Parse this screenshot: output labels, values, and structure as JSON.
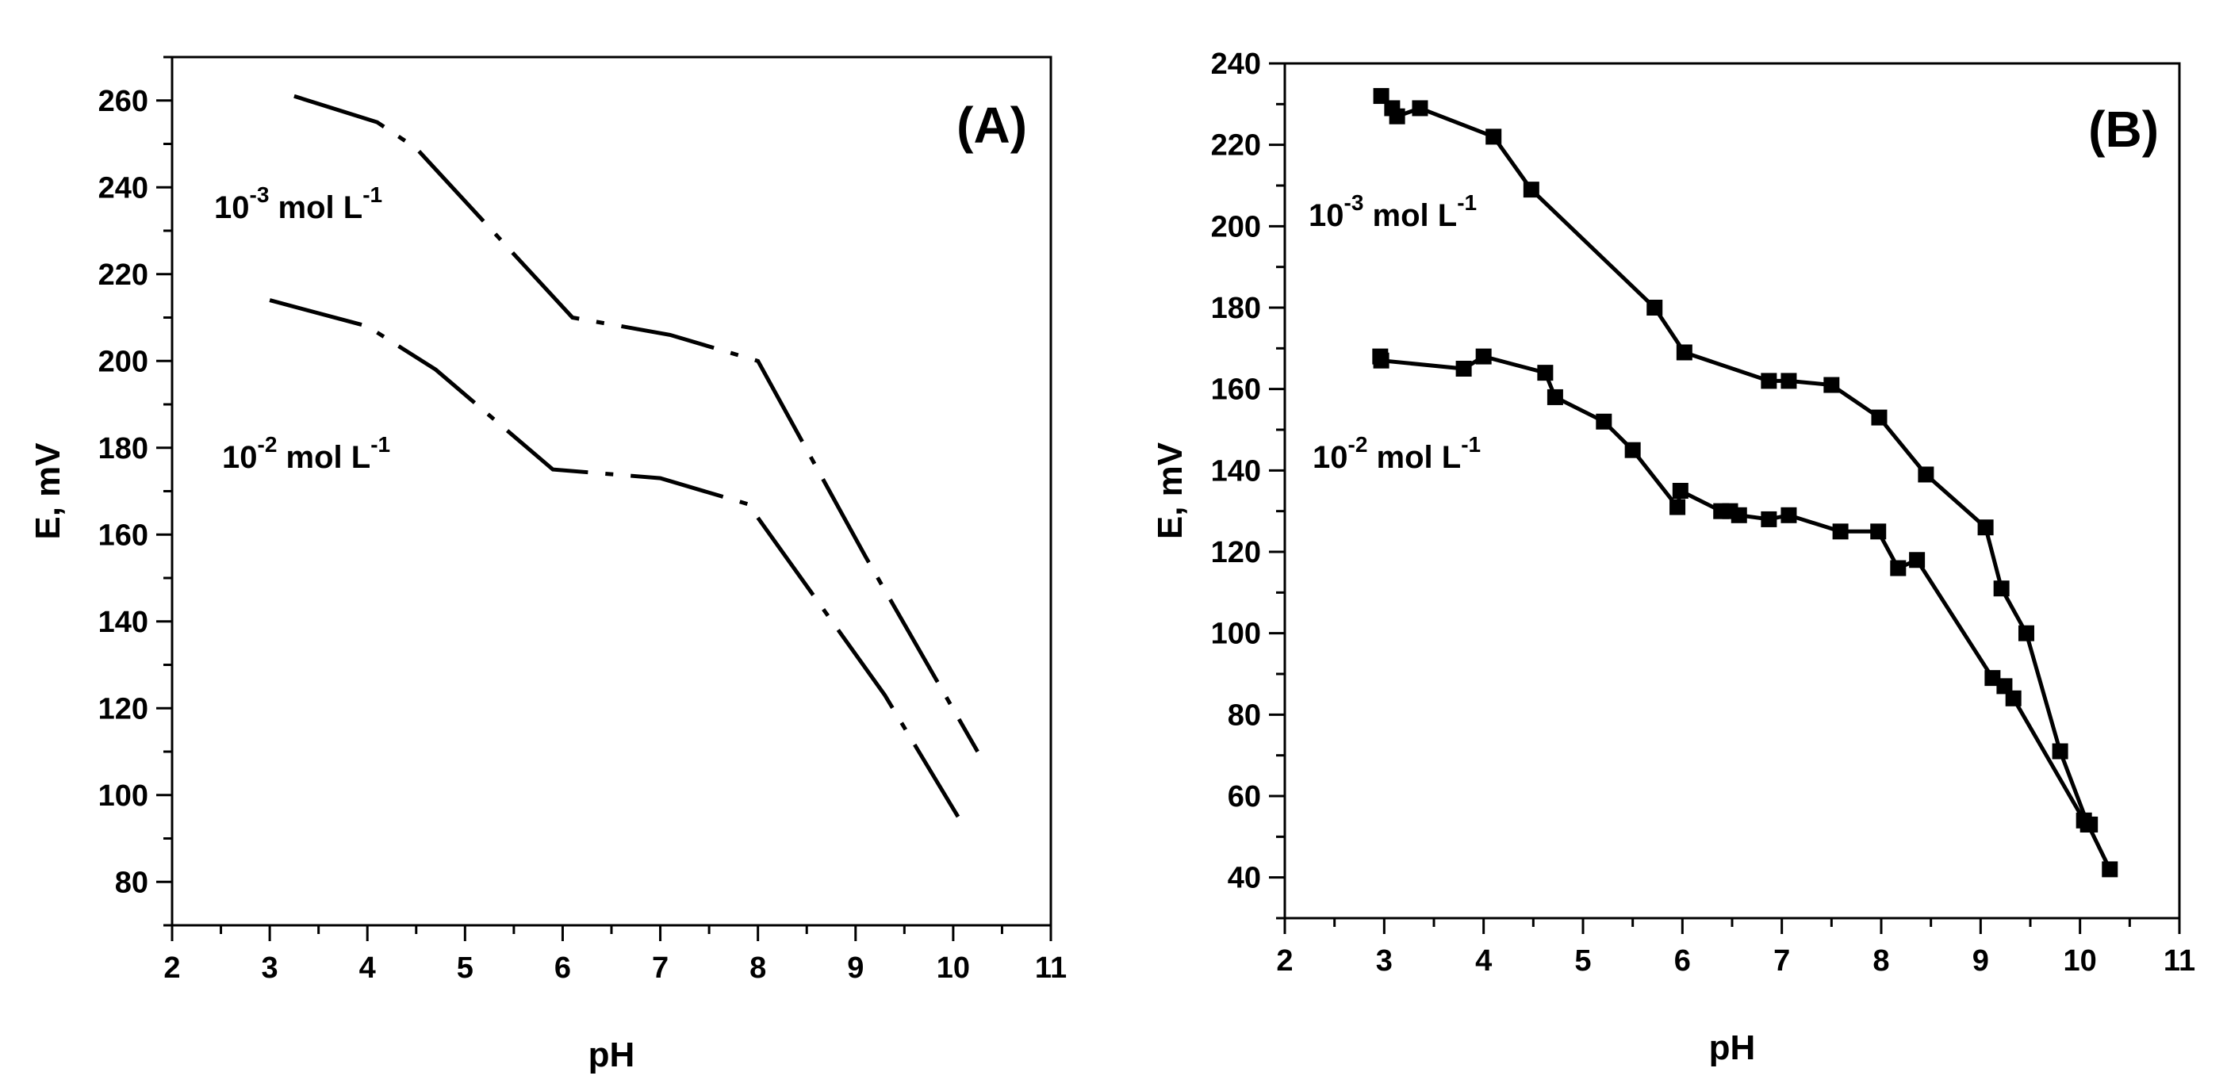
{
  "chart_data": [
    {
      "type": "line",
      "panel_label": "(A)",
      "xlabel": "pH",
      "ylabel": "E, mV",
      "xlim": [
        2,
        11
      ],
      "ylim": [
        70,
        270
      ],
      "xticks": [
        2,
        3,
        4,
        5,
        6,
        7,
        8,
        9,
        10,
        11
      ],
      "yticks": [
        80,
        100,
        120,
        140,
        160,
        180,
        200,
        220,
        240,
        260
      ],
      "grid": false,
      "series": [
        {
          "name": "10-3 mol L-1",
          "label": {
            "base": "10",
            "exp": "-3",
            "unit": " mol L",
            "unit_exp": "-1"
          },
          "dash": "dash-dot",
          "markers": false,
          "x": [
            3.25,
            4.1,
            4.5,
            6.1,
            7.1,
            8.0,
            9.1,
            10.25
          ],
          "y": [
            261,
            255,
            249,
            210,
            206,
            200,
            155,
            110
          ]
        },
        {
          "name": "10-2 mol L-1",
          "label": {
            "base": "10",
            "exp": "-2",
            "unit": " mol L",
            "unit_exp": "-1"
          },
          "dash": "dash-dot",
          "markers": false,
          "x": [
            3.0,
            4.0,
            4.7,
            5.9,
            7.0,
            7.9,
            9.3,
            10.05
          ],
          "y": [
            214,
            208,
            198,
            175,
            173,
            167,
            123,
            95
          ]
        }
      ]
    },
    {
      "type": "line",
      "panel_label": "(B)",
      "xlabel": "pH",
      "ylabel": "E, mV",
      "xlim": [
        2,
        11
      ],
      "ylim": [
        30,
        240
      ],
      "xticks": [
        2,
        3,
        4,
        5,
        6,
        7,
        8,
        9,
        10,
        11
      ],
      "yticks": [
        40,
        60,
        80,
        100,
        120,
        140,
        160,
        180,
        200,
        220,
        240
      ],
      "grid": false,
      "series": [
        {
          "name": "10-3 mol L-1",
          "label": {
            "base": "10",
            "exp": "-3",
            "unit": " mol L",
            "unit_exp": "-1"
          },
          "dash": "solid",
          "markers": true,
          "x": [
            2.97,
            3.08,
            3.13,
            3.36,
            4.1,
            4.48,
            5.72,
            6.02,
            6.87,
            7.07,
            7.5,
            7.98,
            8.45,
            9.05,
            9.21,
            9.46,
            9.8,
            10.08,
            10.3
          ],
          "y": [
            232,
            229,
            227,
            229,
            222,
            209,
            180,
            169,
            162,
            162,
            161,
            153,
            139,
            126,
            111,
            100,
            71,
            53,
            42
          ]
        },
        {
          "name": "10-2 mol L-1",
          "label": {
            "base": "10",
            "exp": "-2",
            "unit": " mol L",
            "unit_exp": "-1"
          },
          "dash": "solid",
          "markers": true,
          "x": [
            2.96,
            2.97,
            3.8,
            4.0,
            4.62,
            4.72,
            5.21,
            5.5,
            5.95,
            5.98,
            6.39,
            6.48,
            6.57,
            6.87,
            7.07,
            7.59,
            7.97,
            8.17,
            8.36,
            9.12,
            9.24,
            9.33,
            10.04,
            10.1
          ],
          "y": [
            168,
            167,
            165,
            168,
            164,
            158,
            152,
            145,
            131,
            135,
            130,
            130,
            129,
            128,
            129,
            125,
            125,
            116,
            118,
            89,
            87,
            84,
            54,
            53
          ]
        }
      ]
    }
  ]
}
